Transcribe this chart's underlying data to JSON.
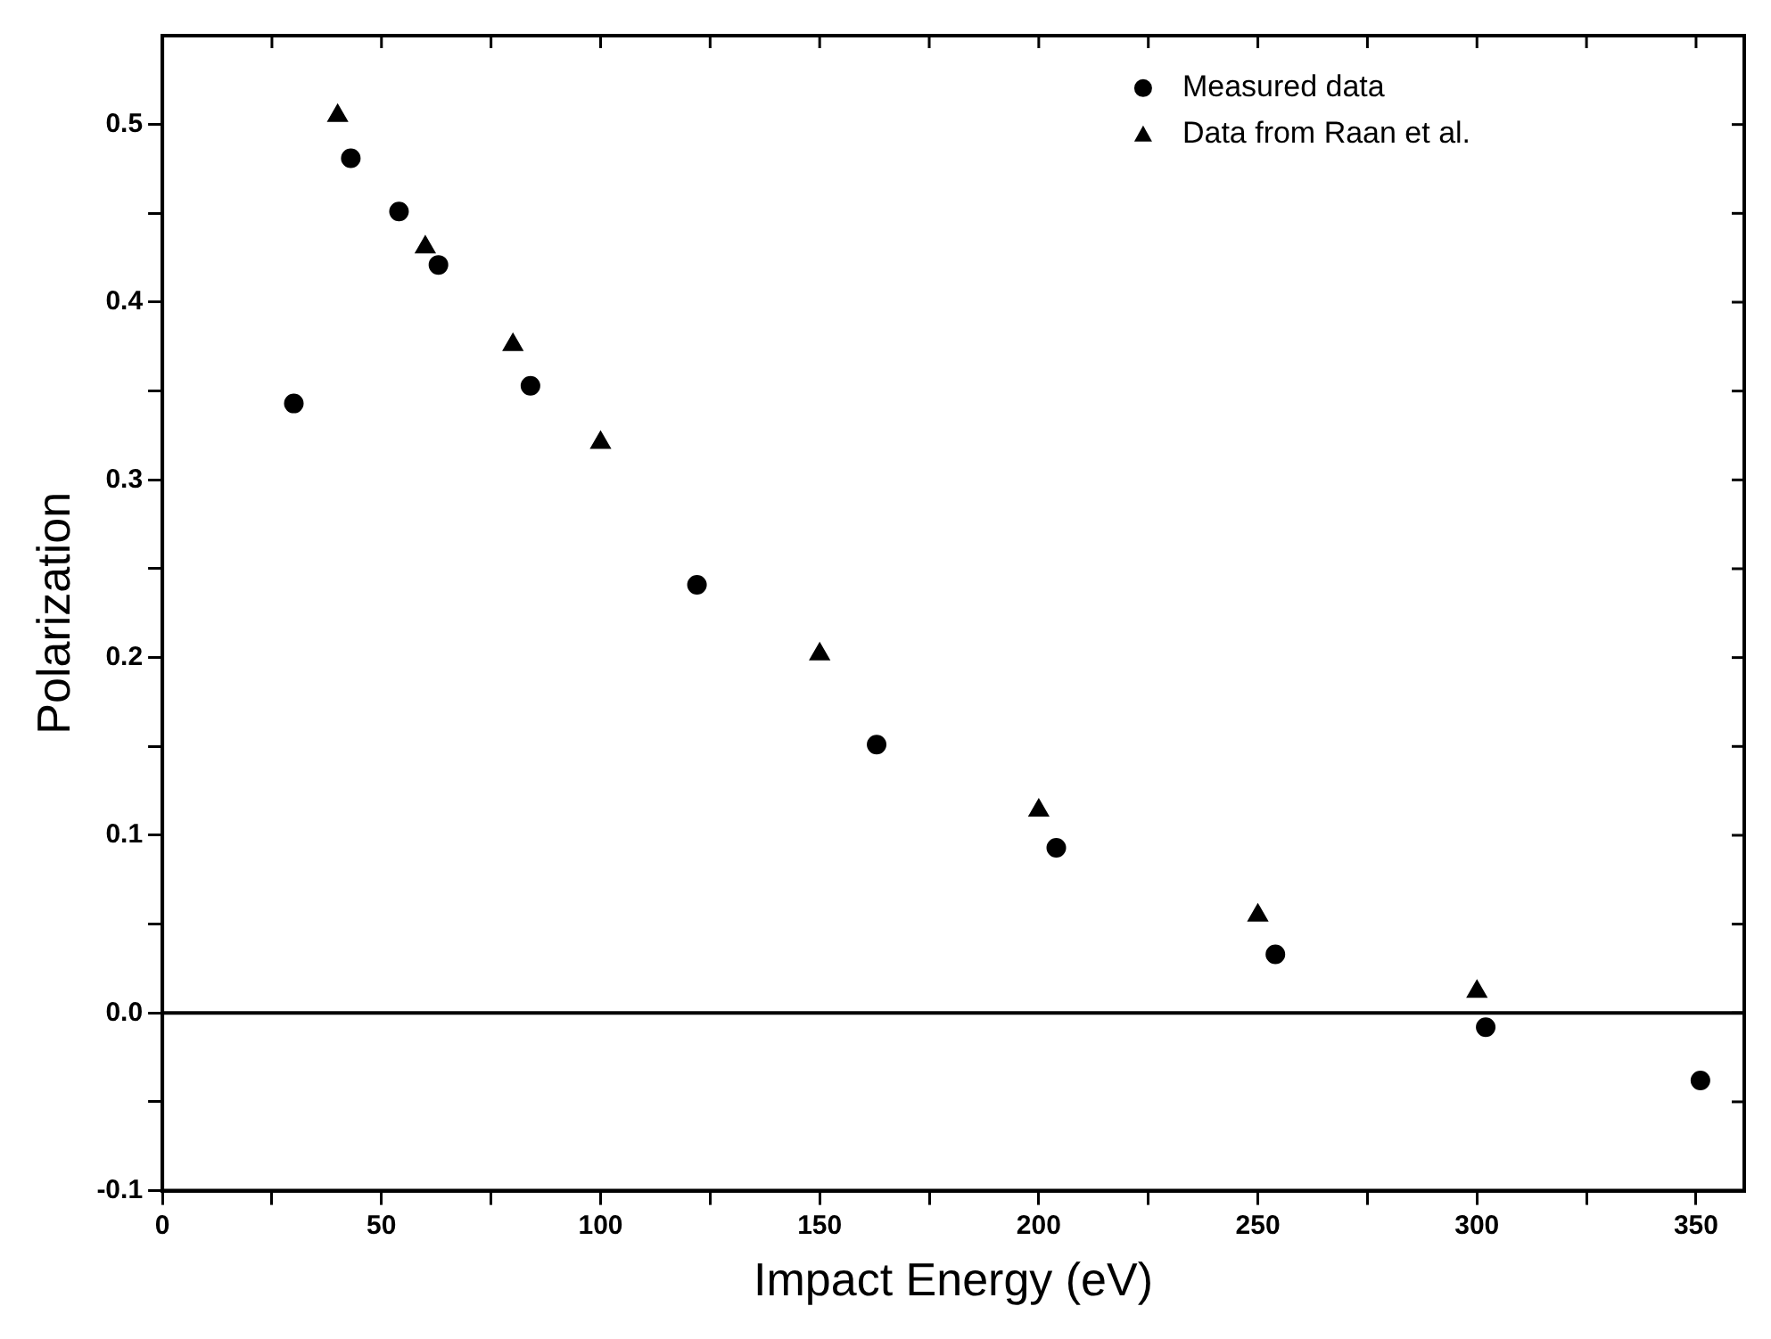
{
  "chart_data": {
    "type": "scatter",
    "xlabel": "Impact Energy (eV)",
    "ylabel": "Polarization",
    "series": [
      {
        "name": "Measured data",
        "color": "#000000",
        "marker": "circle",
        "x": [
          30,
          43,
          54,
          63,
          84,
          122,
          163,
          204,
          254,
          302,
          351
        ],
        "values": [
          0.343,
          0.481,
          0.451,
          0.421,
          0.353,
          0.241,
          0.151,
          0.093,
          0.033,
          -0.008,
          -0.038
        ]
      },
      {
        "name": "Data from Raan et al.",
        "color": "#000000",
        "marker": "triangle",
        "x": [
          40,
          60,
          80,
          100,
          150,
          200,
          250,
          300
        ],
        "values": [
          0.505,
          0.431,
          0.376,
          0.321,
          0.202,
          0.114,
          0.055,
          0.012
        ]
      }
    ],
    "xlim": [
      0,
      361
    ],
    "ylim": [
      -0.1,
      0.55
    ],
    "xticks": [
      0,
      {
        "value": 25,
        "label": null
      },
      50,
      {
        "value": 75,
        "label": null
      },
      100,
      {
        "value": 125,
        "label": null
      },
      150,
      {
        "value": 175,
        "label": null
      },
      200,
      {
        "value": 225,
        "label": null
      },
      250,
      {
        "value": 275,
        "label": null
      },
      300,
      {
        "value": 325,
        "label": null
      },
      350
    ],
    "yticks": [
      -0.1,
      {
        "value": -0.05,
        "label": null
      },
      {
        "value": 0,
        "label": "0.0"
      },
      {
        "value": 0.05,
        "label": null
      },
      0.1,
      {
        "value": 0.15,
        "label": null
      },
      0.2,
      {
        "value": 0.25,
        "label": null
      },
      0.3,
      {
        "value": 0.35,
        "label": null
      },
      0.4,
      {
        "value": 0.45,
        "label": null
      },
      0.5
    ],
    "ref_lines": [
      {
        "axis": "y",
        "value": 0,
        "color": "#000000"
      }
    ],
    "grid": false,
    "legend": "top right"
  }
}
